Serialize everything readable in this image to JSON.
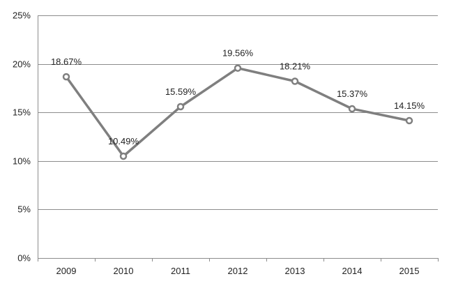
{
  "chart_data": {
    "type": "line",
    "title": "",
    "xlabel": "",
    "ylabel": "",
    "categories": [
      "2009",
      "2010",
      "2011",
      "2012",
      "2013",
      "2014",
      "2015"
    ],
    "series": [
      {
        "values": [
          18.67,
          10.49,
          15.59,
          19.56,
          18.21,
          15.37,
          14.15
        ],
        "labels": [
          "18.67%",
          "10.49%",
          "15.59%",
          "19.56%",
          "18.21%",
          "15.37%",
          "14.15%"
        ]
      }
    ],
    "ylim": [
      0,
      25
    ],
    "yticks": [
      0,
      5,
      10,
      15,
      20,
      25
    ],
    "ytick_labels": [
      "0%",
      "5%",
      "10%",
      "15%",
      "20%",
      "25%"
    ],
    "grid": "horizontal",
    "legend": "none",
    "colors": {
      "line": "#7f7f7f",
      "marker_fill": "#ffffff",
      "gridline": "#8c8c8c"
    }
  }
}
